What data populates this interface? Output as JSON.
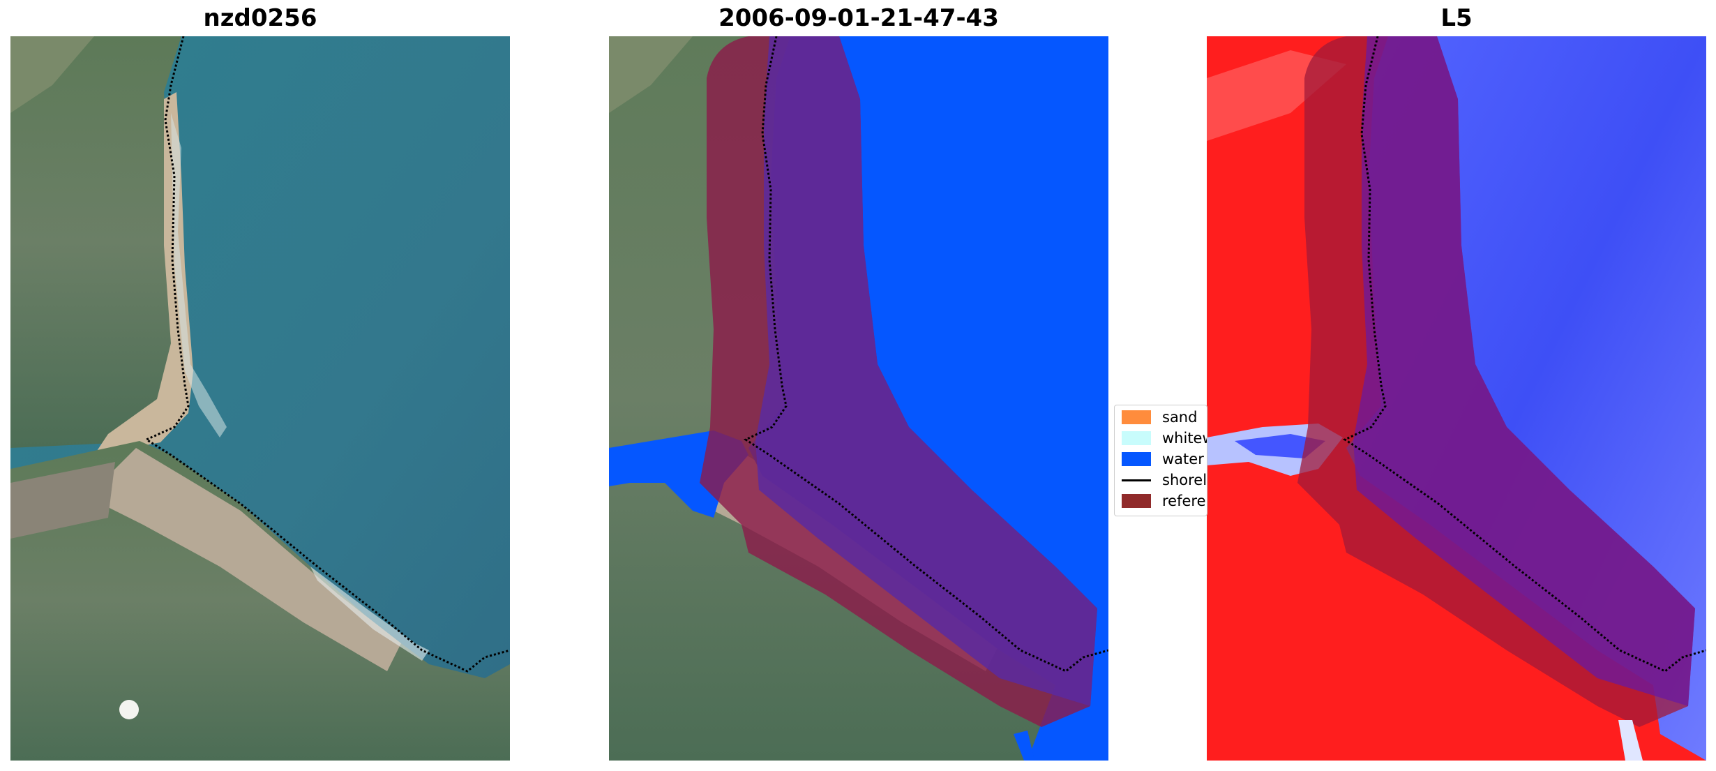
{
  "panels": [
    {
      "title": "nzd0256"
    },
    {
      "title": "2006-09-01-21-47-43"
    },
    {
      "title": "L5"
    }
  ],
  "legend": {
    "items": [
      {
        "label": "sand",
        "color": "#ff8c3c",
        "kind": "patch"
      },
      {
        "label": "whitewater",
        "color": "#c8fcfc",
        "kind": "patch"
      },
      {
        "label": "water",
        "color": "#0557ff",
        "kind": "patch"
      },
      {
        "label": "shoreline",
        "color": "#000000",
        "kind": "line"
      },
      {
        "label": "reference",
        "color": "#902a2a",
        "kind": "patch"
      }
    ]
  },
  "colors": {
    "sea": "#3d7a90",
    "land": "#6a7d5f",
    "beach": "#c8b49a",
    "water_mask": "#0557ff",
    "reference_buffer": "#8c1a4a",
    "index_positive": "#ff1e1e",
    "index_negative": "#4455ff"
  }
}
